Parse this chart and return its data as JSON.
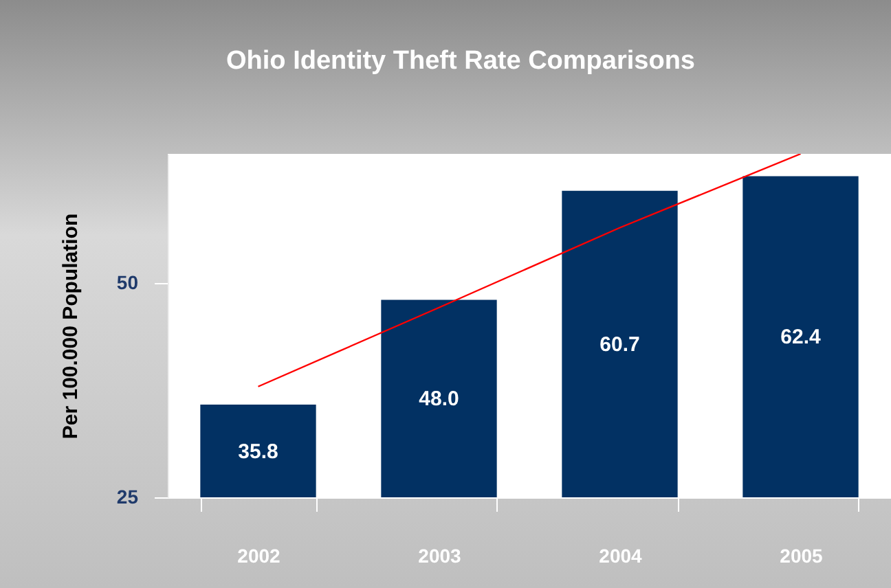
{
  "chart_data": {
    "type": "bar",
    "title": "Ohio Identity Theft Rate Comparisons",
    "ylabel": "Per 100.000 Population",
    "categories": [
      "2002",
      "2003",
      "2004",
      "2005"
    ],
    "series": [
      {
        "color": "#023163",
        "values": [
          35.8,
          48.0,
          60.7,
          62.4
        ],
        "value_labels": [
          "35.8",
          "48.0",
          "60.7",
          "62.4"
        ]
      },
      {
        "type": "line",
        "color": "#ff0000",
        "values": [
          37.9,
          47.1,
          56.4,
          65
        ]
      }
    ],
    "ylim": [
      25,
      65
    ],
    "yticks": [
      25,
      50
    ],
    "grid": false,
    "marker": "none",
    "line_style": "solid"
  }
}
